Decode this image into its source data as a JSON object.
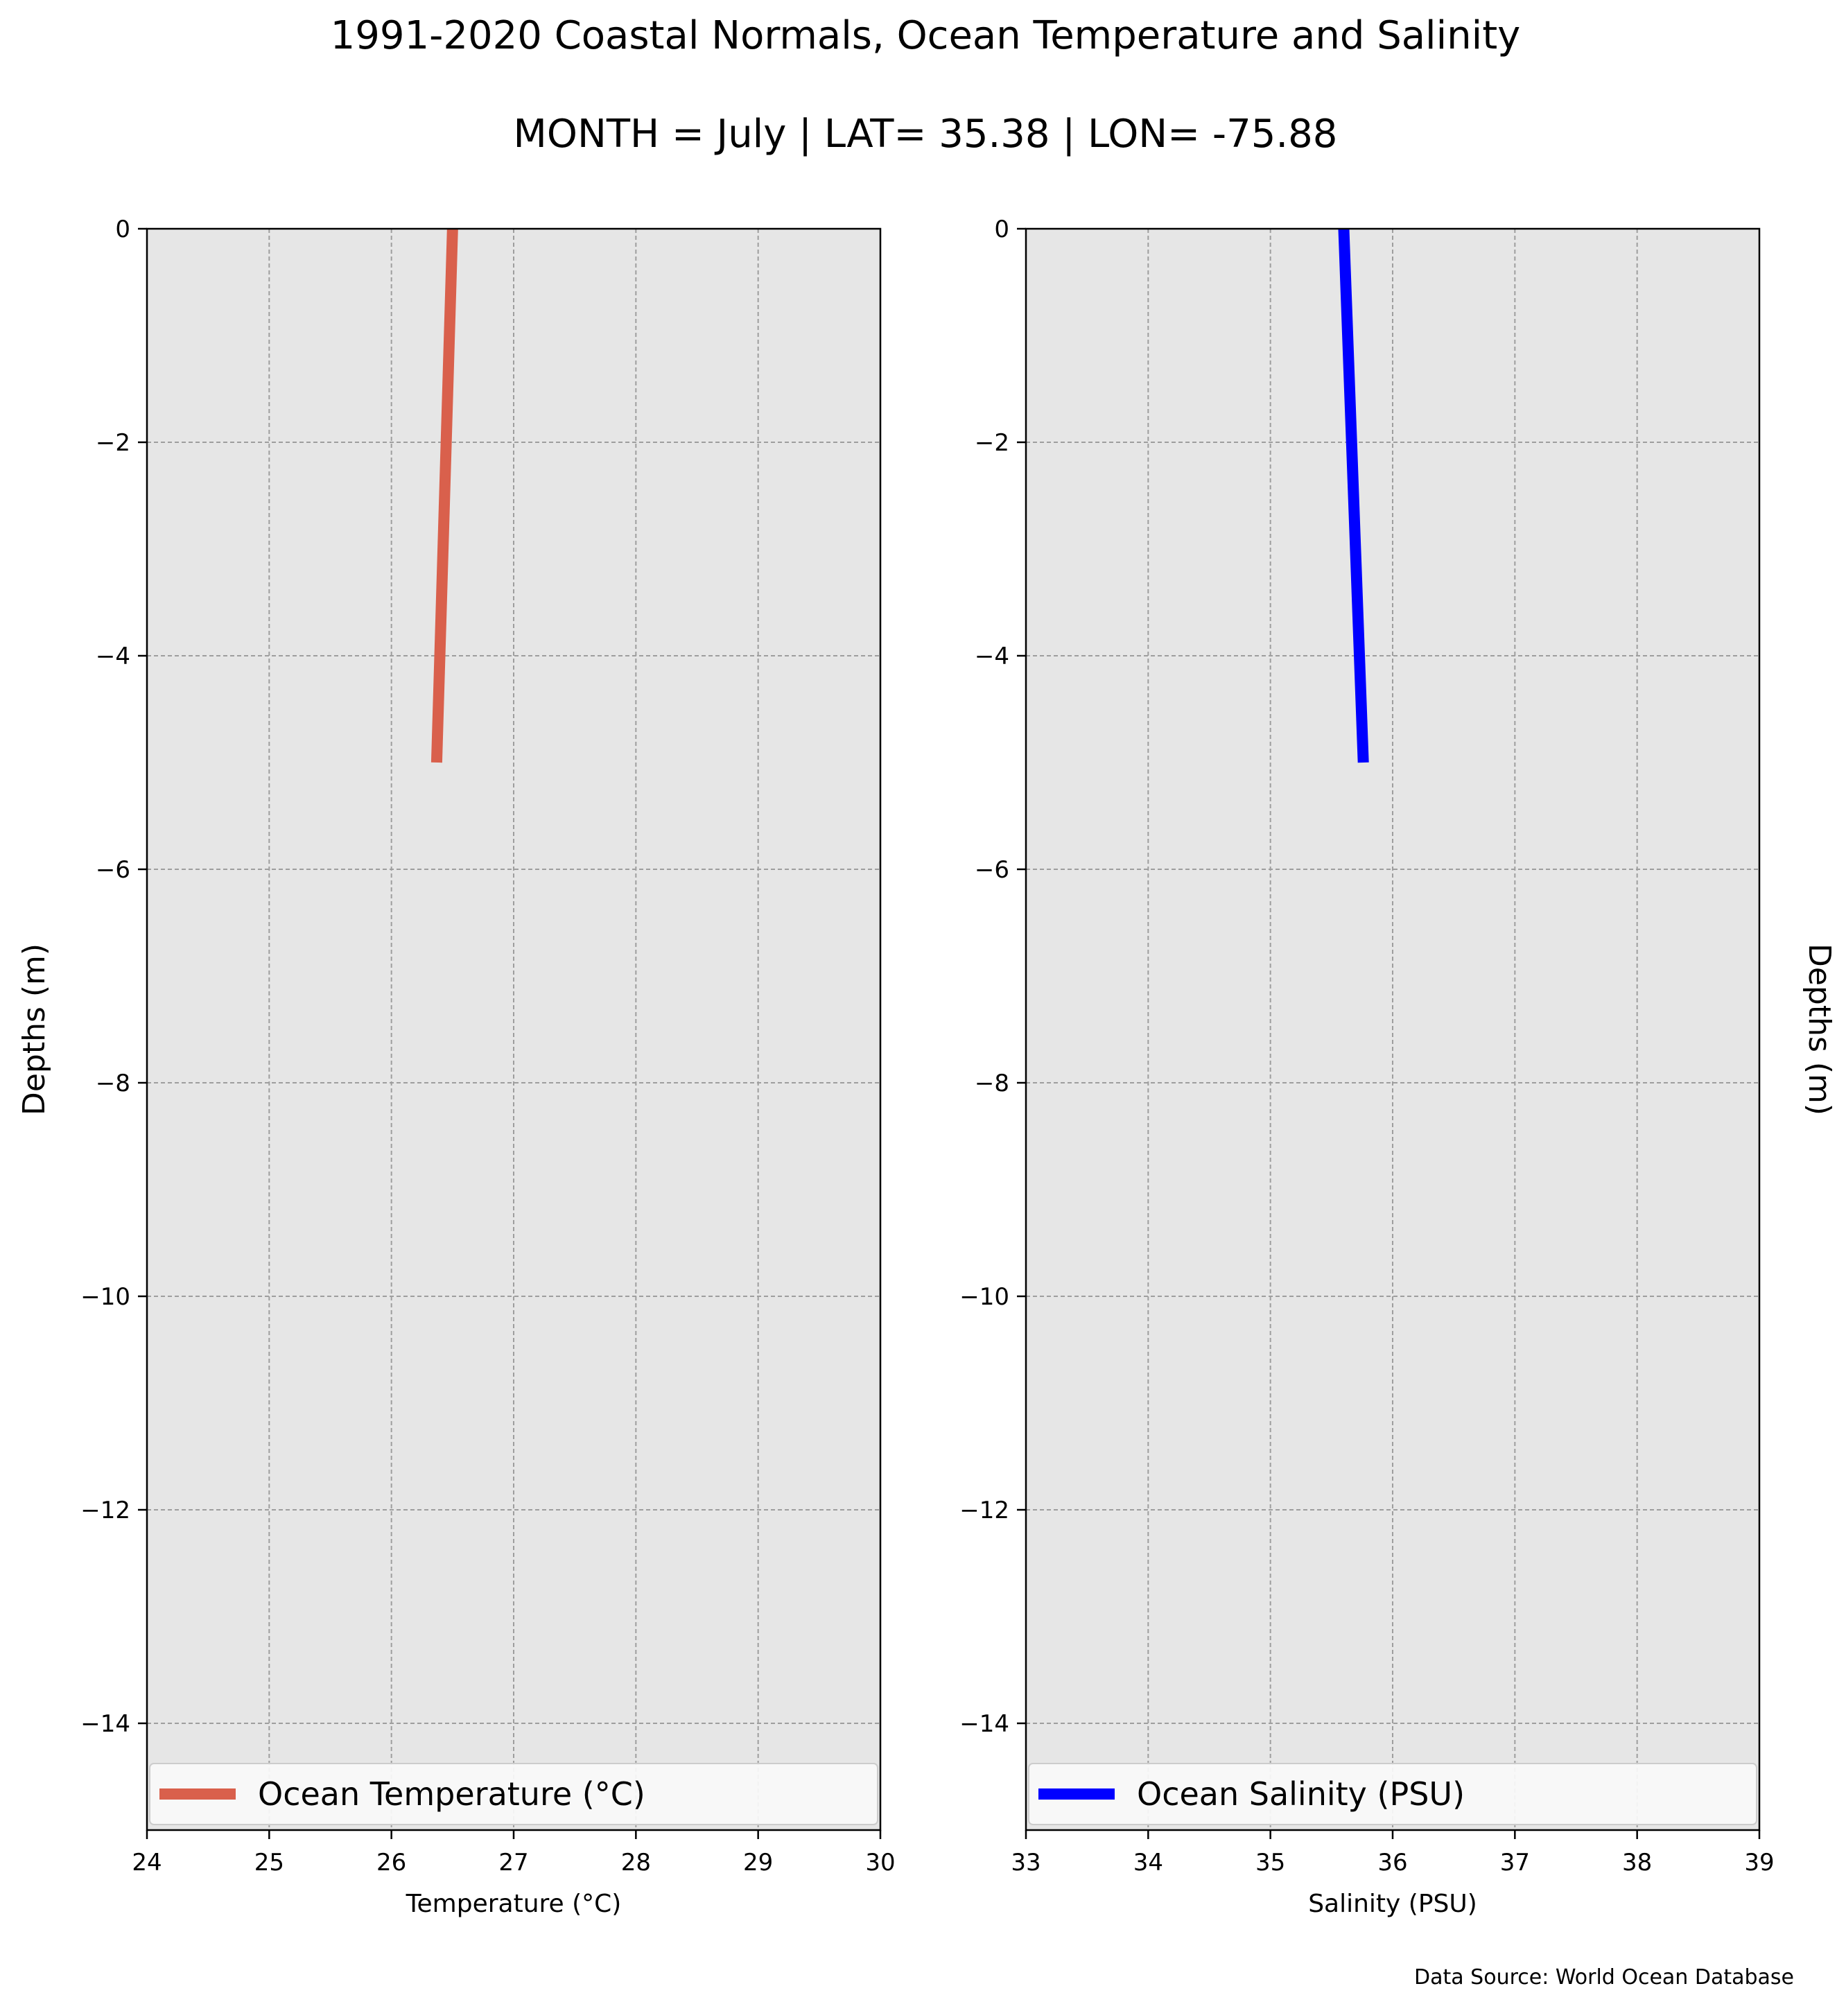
{
  "figure": {
    "title": "1991-2020 Coastal Normals, Ocean Temperature and Salinity",
    "subtitle": "MONTH = July | LAT= 35.38 | LON= -75.88",
    "source_note": "Data Source: World Ocean Database",
    "background": "#ffffff",
    "axes_background": "#e6e6e6"
  },
  "chart_data": [
    {
      "type": "line",
      "xlabel": "Temperature ($^\\circ$C)",
      "xlabel_display": "Temperature (°C)",
      "ylabel": "Depths (m)",
      "xlim": [
        24,
        30
      ],
      "ylim": [
        -15,
        0
      ],
      "xticks": [
        "24",
        "25",
        "26",
        "27",
        "28",
        "29",
        "30"
      ],
      "yticks": [
        "0",
        "−2",
        "−4",
        "−6",
        "−8",
        "−10",
        "−12",
        "−14"
      ],
      "grid": true,
      "legend_position": "bottom",
      "series": [
        {
          "name": "Ocean Temperature (°C)",
          "color": "#d9604c",
          "x": [
            26.5,
            26.37
          ],
          "y": [
            0,
            -5
          ]
        }
      ]
    },
    {
      "type": "line",
      "xlabel": "Salinity (PSU)",
      "ylabel": "Depths (m)",
      "ylabel_side": "right",
      "xlim": [
        33,
        39
      ],
      "ylim": [
        -15,
        0
      ],
      "xticks": [
        "33",
        "34",
        "35",
        "36",
        "37",
        "38",
        "39"
      ],
      "yticks": [
        "0",
        "−2",
        "−4",
        "−6",
        "−8",
        "−10",
        "−12",
        "−14"
      ],
      "grid": true,
      "legend_position": "bottom",
      "series": [
        {
          "name": "Ocean Salinity (PSU)",
          "color": "#0000ff",
          "x": [
            35.6,
            35.76
          ],
          "y": [
            0,
            -5
          ]
        }
      ]
    }
  ]
}
